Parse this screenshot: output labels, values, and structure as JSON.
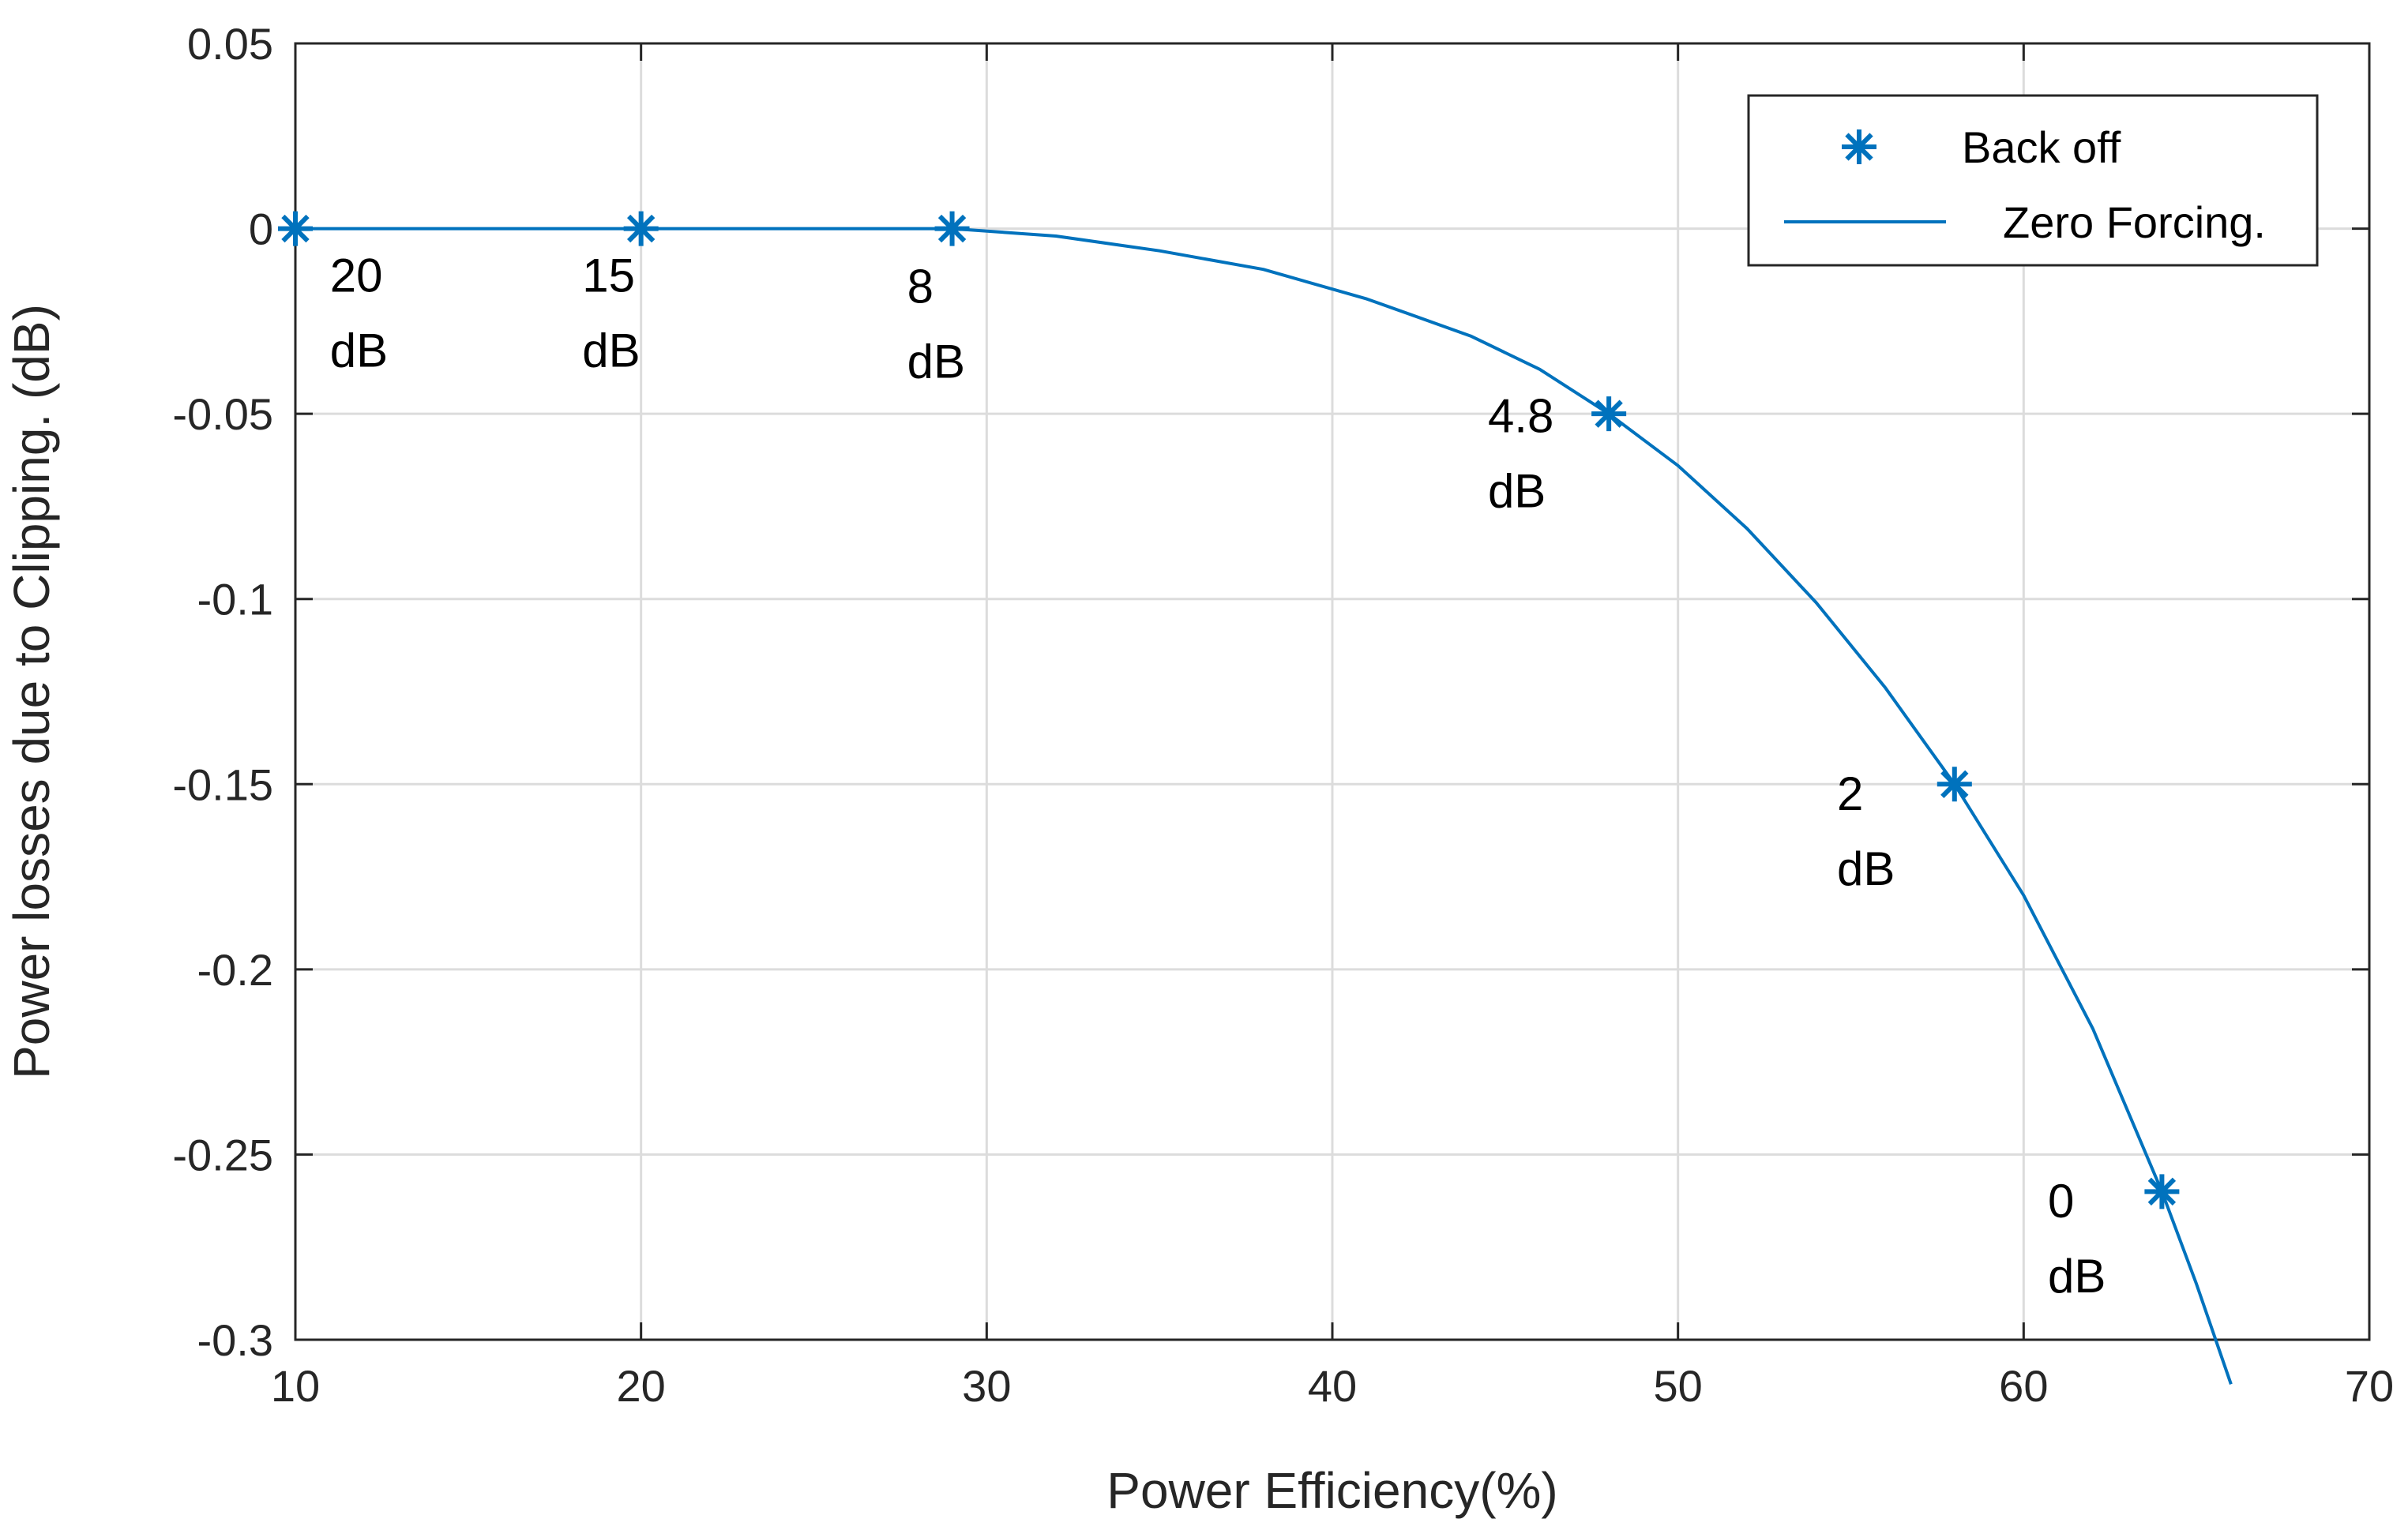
{
  "chart_data": {
    "type": "line",
    "title": "",
    "xlabel": "Power Efficiency(%)",
    "ylabel": "Power losses due to Clipping. (dB)",
    "xlim": [
      10,
      70
    ],
    "ylim": [
      -0.3,
      0.05
    ],
    "xticks": [
      10,
      20,
      30,
      40,
      50,
      60,
      70
    ],
    "xtick_labels": [
      "10",
      "20",
      "30",
      "40",
      "50",
      "60",
      "70"
    ],
    "yticks": [
      0.05,
      0,
      -0.05,
      -0.1,
      -0.15,
      -0.2,
      -0.25,
      -0.3
    ],
    "ytick_labels": [
      "0.05",
      "0",
      "-0.05",
      "-0.1",
      "-0.15",
      "-0.2",
      "-0.25",
      "-0.3"
    ],
    "grid": true,
    "legend_position": "top-right",
    "series": [
      {
        "name": "Back off",
        "style": "markers",
        "marker": "asterisk",
        "color": "#0072BD",
        "x": [
          10,
          20,
          29,
          48,
          58,
          64
        ],
        "y": [
          0,
          0,
          0,
          -0.05,
          -0.15,
          -0.26
        ]
      },
      {
        "name": "Zero Forcing.",
        "style": "line",
        "color": "#0072BD",
        "x": [
          10,
          15,
          20,
          25,
          29,
          32,
          35,
          38,
          41,
          44,
          46,
          48,
          50,
          52,
          54,
          56,
          58,
          60,
          62,
          64,
          65,
          66
        ],
        "y": [
          0,
          0,
          0,
          0,
          0,
          -0.002,
          -0.006,
          -0.011,
          -0.019,
          -0.029,
          -0.038,
          -0.05,
          -0.064,
          -0.081,
          -0.101,
          -0.124,
          -0.15,
          -0.18,
          -0.216,
          -0.26,
          -0.285,
          -0.312
        ]
      }
    ],
    "annotations": [
      {
        "lines": [
          "20",
          "dB"
        ],
        "x": 11.0,
        "y": -0.017
      },
      {
        "lines": [
          "15",
          "dB"
        ],
        "x": 18.3,
        "y": -0.017
      },
      {
        "lines": [
          "8",
          "dB"
        ],
        "x": 27.7,
        "y": -0.02
      },
      {
        "lines": [
          "4.8",
          "dB"
        ],
        "x": 44.5,
        "y": -0.055
      },
      {
        "lines": [
          "2",
          "dB"
        ],
        "x": 54.6,
        "y": -0.157
      },
      {
        "lines": [
          "0",
          "dB"
        ],
        "x": 60.7,
        "y": -0.267
      }
    ]
  }
}
